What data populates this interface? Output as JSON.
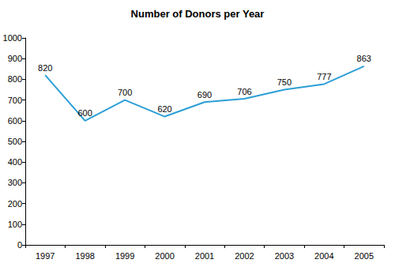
{
  "chart_data": {
    "type": "line",
    "title": "Number of Donors per Year",
    "categories": [
      "1997",
      "1998",
      "1999",
      "2000",
      "2001",
      "2002",
      "2003",
      "2004",
      "2005"
    ],
    "values": [
      820,
      600,
      700,
      620,
      690,
      706,
      750,
      777,
      863
    ],
    "color": "#2b9fd6",
    "marker": "none",
    "data_labels": true,
    "ylim": [
      0,
      1000
    ],
    "yticks": [
      0,
      100,
      200,
      300,
      400,
      500,
      600,
      700,
      800,
      900,
      1000
    ],
    "grid": false
  }
}
